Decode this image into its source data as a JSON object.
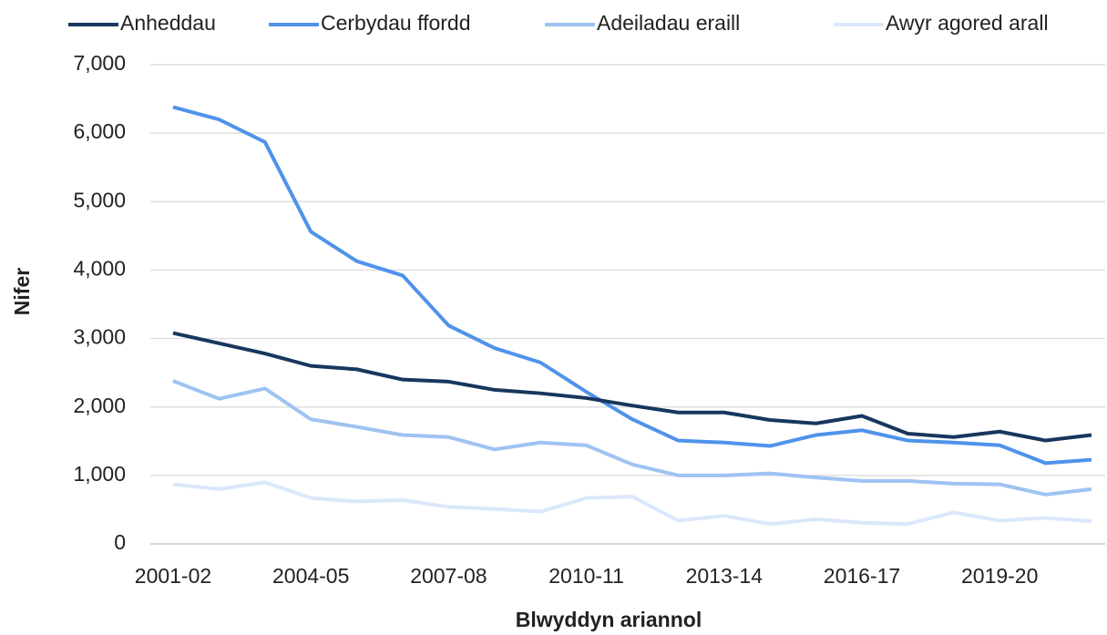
{
  "chart_data": {
    "type": "line",
    "x_label": "Blwyddyn ariannol",
    "y_label": "Nifer",
    "categories": [
      "2001-02",
      null,
      null,
      "2004-05",
      null,
      null,
      "2007-08",
      null,
      null,
      "2010-11",
      null,
      null,
      "2013-14",
      null,
      null,
      "2016-17",
      null,
      null,
      "2019-20",
      null,
      null
    ],
    "series": [
      {
        "name": "Anheddau",
        "color": "#17375e",
        "values": [
          3080,
          2930,
          2780,
          2600,
          2550,
          2400,
          2370,
          2250,
          2200,
          2130,
          2020,
          1920,
          1920,
          1810,
          1760,
          1870,
          1610,
          1560,
          1640,
          1510,
          1590
        ]
      },
      {
        "name": "Cerbydau ffordd",
        "color": "#4f93ea",
        "values": [
          6380,
          6200,
          5870,
          4560,
          4130,
          3920,
          3190,
          2860,
          2650,
          2220,
          1820,
          1510,
          1480,
          1430,
          1590,
          1660,
          1510,
          1480,
          1440,
          1180,
          1230
        ]
      },
      {
        "name": "Adeiladau eraill",
        "color": "#9dc3f1",
        "values": [
          2380,
          2120,
          2270,
          1820,
          1710,
          1590,
          1560,
          1380,
          1480,
          1440,
          1160,
          1000,
          1000,
          1030,
          970,
          920,
          920,
          880,
          870,
          720,
          800
        ]
      },
      {
        "name": "Awyr agored arall",
        "color": "#dae8fb",
        "values": [
          870,
          800,
          900,
          670,
          620,
          640,
          540,
          510,
          470,
          670,
          690,
          340,
          410,
          290,
          360,
          310,
          290,
          460,
          340,
          380,
          330
        ]
      }
    ],
    "ylim": [
      0,
      7000
    ],
    "yticks": [
      0,
      {
        "value": 1000,
        "label": "1,000"
      },
      {
        "value": 2000,
        "label": "2,000"
      },
      {
        "value": 3000,
        "label": "3,000"
      },
      {
        "value": 4000,
        "label": "4,000"
      },
      {
        "value": 5000,
        "label": "5,000"
      },
      {
        "value": 6000,
        "label": "6,000"
      },
      {
        "value": 7000,
        "label": "7,000"
      }
    ],
    "grid": true,
    "legend": "top"
  }
}
